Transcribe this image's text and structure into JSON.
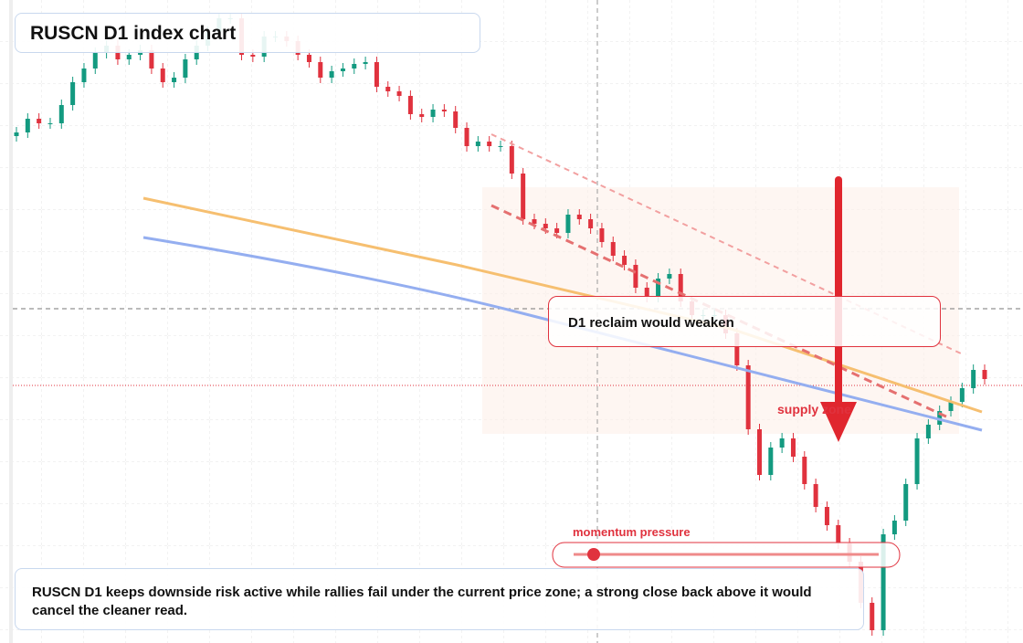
{
  "chart_data": {
    "type": "candlestick",
    "title": "RUSCN D1 index chart",
    "annotations": {
      "reclaim": "D1 reclaim would weaken",
      "supply": "supply zone",
      "momentum": "momentum pressure"
    },
    "caption": "RUSCN D1 keeps downside risk active while rallies fail under the current price zone; a strong close back above it would cancel the cleaner read.",
    "up_color": "#139a80",
    "down_color": "#e0323e",
    "ylim": [
      0,
      704
    ],
    "open": [
      555,
      559,
      574,
      569,
      569,
      589,
      614,
      629,
      646,
      654,
      639,
      644,
      649,
      629,
      614,
      619,
      639,
      654,
      669,
      684,
      684,
      644,
      642,
      664,
      664,
      659,
      644,
      636,
      619,
      626,
      629,
      634,
      636,
      609,
      604,
      599,
      579,
      576,
      584,
      582,
      564,
      544,
      549,
      544,
      544,
      514,
      464,
      459,
      454,
      449,
      469,
      464,
      454,
      439,
      424,
      414,
      389,
      379,
      399,
      404,
      374,
      359,
      359,
      359,
      339,
      304,
      234,
      184,
      214,
      224,
      204,
      174,
      149,
      129,
      109,
      89,
      44,
      14,
      119,
      134,
      174,
      224,
      239,
      254,
      264,
      279,
      299
    ],
    "high": [
      565,
      580,
      580,
      575,
      595,
      620,
      635,
      652,
      660,
      660,
      650,
      655,
      655,
      635,
      625,
      645,
      660,
      675,
      690,
      690,
      690,
      650,
      670,
      670,
      670,
      665,
      650,
      642,
      632,
      635,
      640,
      642,
      642,
      615,
      610,
      605,
      585,
      590,
      590,
      588,
      570,
      555,
      555,
      550,
      550,
      520,
      470,
      465,
      460,
      475,
      475,
      470,
      460,
      445,
      430,
      420,
      395,
      405,
      410,
      410,
      380,
      365,
      365,
      365,
      345,
      310,
      240,
      220,
      230,
      230,
      210,
      180,
      155,
      135,
      115,
      95,
      50,
      125,
      140,
      180,
      230,
      245,
      260,
      270,
      285,
      305,
      305
    ],
    "low": [
      549,
      553,
      563,
      563,
      563,
      583,
      608,
      623,
      640,
      633,
      633,
      638,
      623,
      608,
      608,
      613,
      633,
      648,
      663,
      678,
      638,
      636,
      636,
      658,
      653,
      638,
      630,
      613,
      613,
      620,
      623,
      628,
      603,
      598,
      593,
      573,
      570,
      570,
      576,
      558,
      538,
      538,
      538,
      538,
      508,
      458,
      453,
      448,
      443,
      443,
      458,
      448,
      433,
      418,
      408,
      383,
      373,
      373,
      393,
      368,
      353,
      353,
      353,
      333,
      298,
      228,
      178,
      178,
      208,
      198,
      168,
      143,
      123,
      103,
      83,
      38,
      8,
      8,
      113,
      128,
      168,
      218,
      233,
      248,
      258,
      273,
      283
    ],
    "close": [
      559,
      574,
      569,
      569,
      589,
      614,
      629,
      646,
      654,
      639,
      644,
      649,
      629,
      614,
      619,
      639,
      654,
      669,
      684,
      684,
      644,
      642,
      664,
      664,
      659,
      644,
      636,
      619,
      626,
      629,
      634,
      636,
      609,
      604,
      599,
      579,
      576,
      584,
      582,
      564,
      544,
      549,
      544,
      544,
      514,
      464,
      459,
      454,
      449,
      469,
      464,
      454,
      439,
      424,
      414,
      389,
      379,
      399,
      404,
      374,
      359,
      359,
      359,
      339,
      304,
      234,
      184,
      214,
      224,
      204,
      174,
      149,
      129,
      109,
      89,
      44,
      14,
      119,
      134,
      174,
      224,
      239,
      254,
      264,
      279,
      299,
      289
    ]
  }
}
